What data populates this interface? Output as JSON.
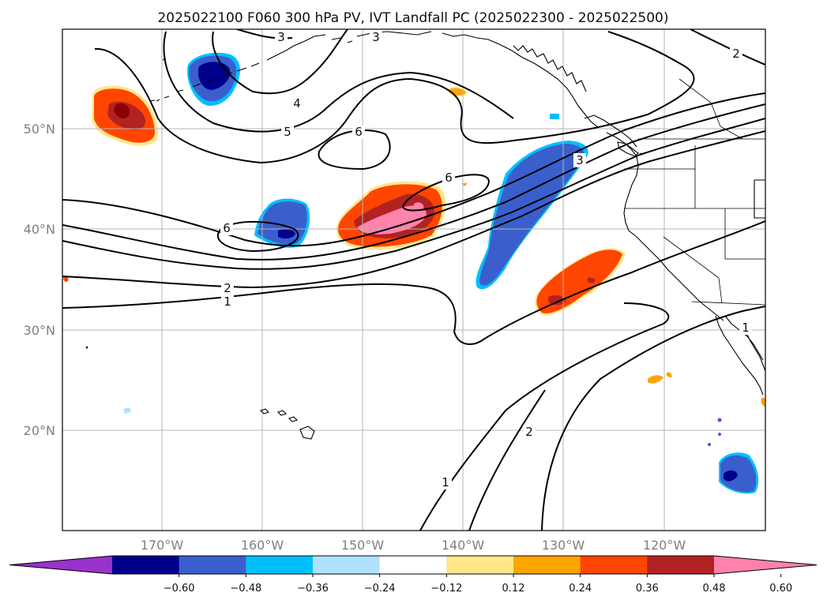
{
  "title": "2025022100 F060 300 hPa PV, IVT Landfall PC (2025022300 - 2025022500)",
  "map": {
    "lon_ticks": [
      "170°W",
      "160°W",
      "150°W",
      "140°W",
      "130°W",
      "120°W"
    ],
    "lat_ticks": [
      "50°N",
      "40°N",
      "30°N",
      "20°N"
    ],
    "gridlines": true
  },
  "contours": {
    "color": "#000000",
    "labels": [
      "3",
      "3",
      "2",
      "4",
      "5",
      "6",
      "6",
      "6",
      "2",
      "1",
      "3",
      "1",
      "2",
      "1"
    ]
  },
  "colorbar": {
    "ticks": [
      "−0.60",
      "−0.48",
      "−0.36",
      "−0.24",
      "−0.12",
      "0.12",
      "0.24",
      "0.36",
      "0.48",
      "0.60"
    ],
    "colors": [
      "#9932cc",
      "#00008b",
      "#3a5fcd",
      "#00bfff",
      "#b0e2ff",
      "#ffffff",
      "#ffe78a",
      "#ffa500",
      "#ff4500",
      "#b22222",
      "#ff82ab"
    ],
    "extend": "both"
  }
}
